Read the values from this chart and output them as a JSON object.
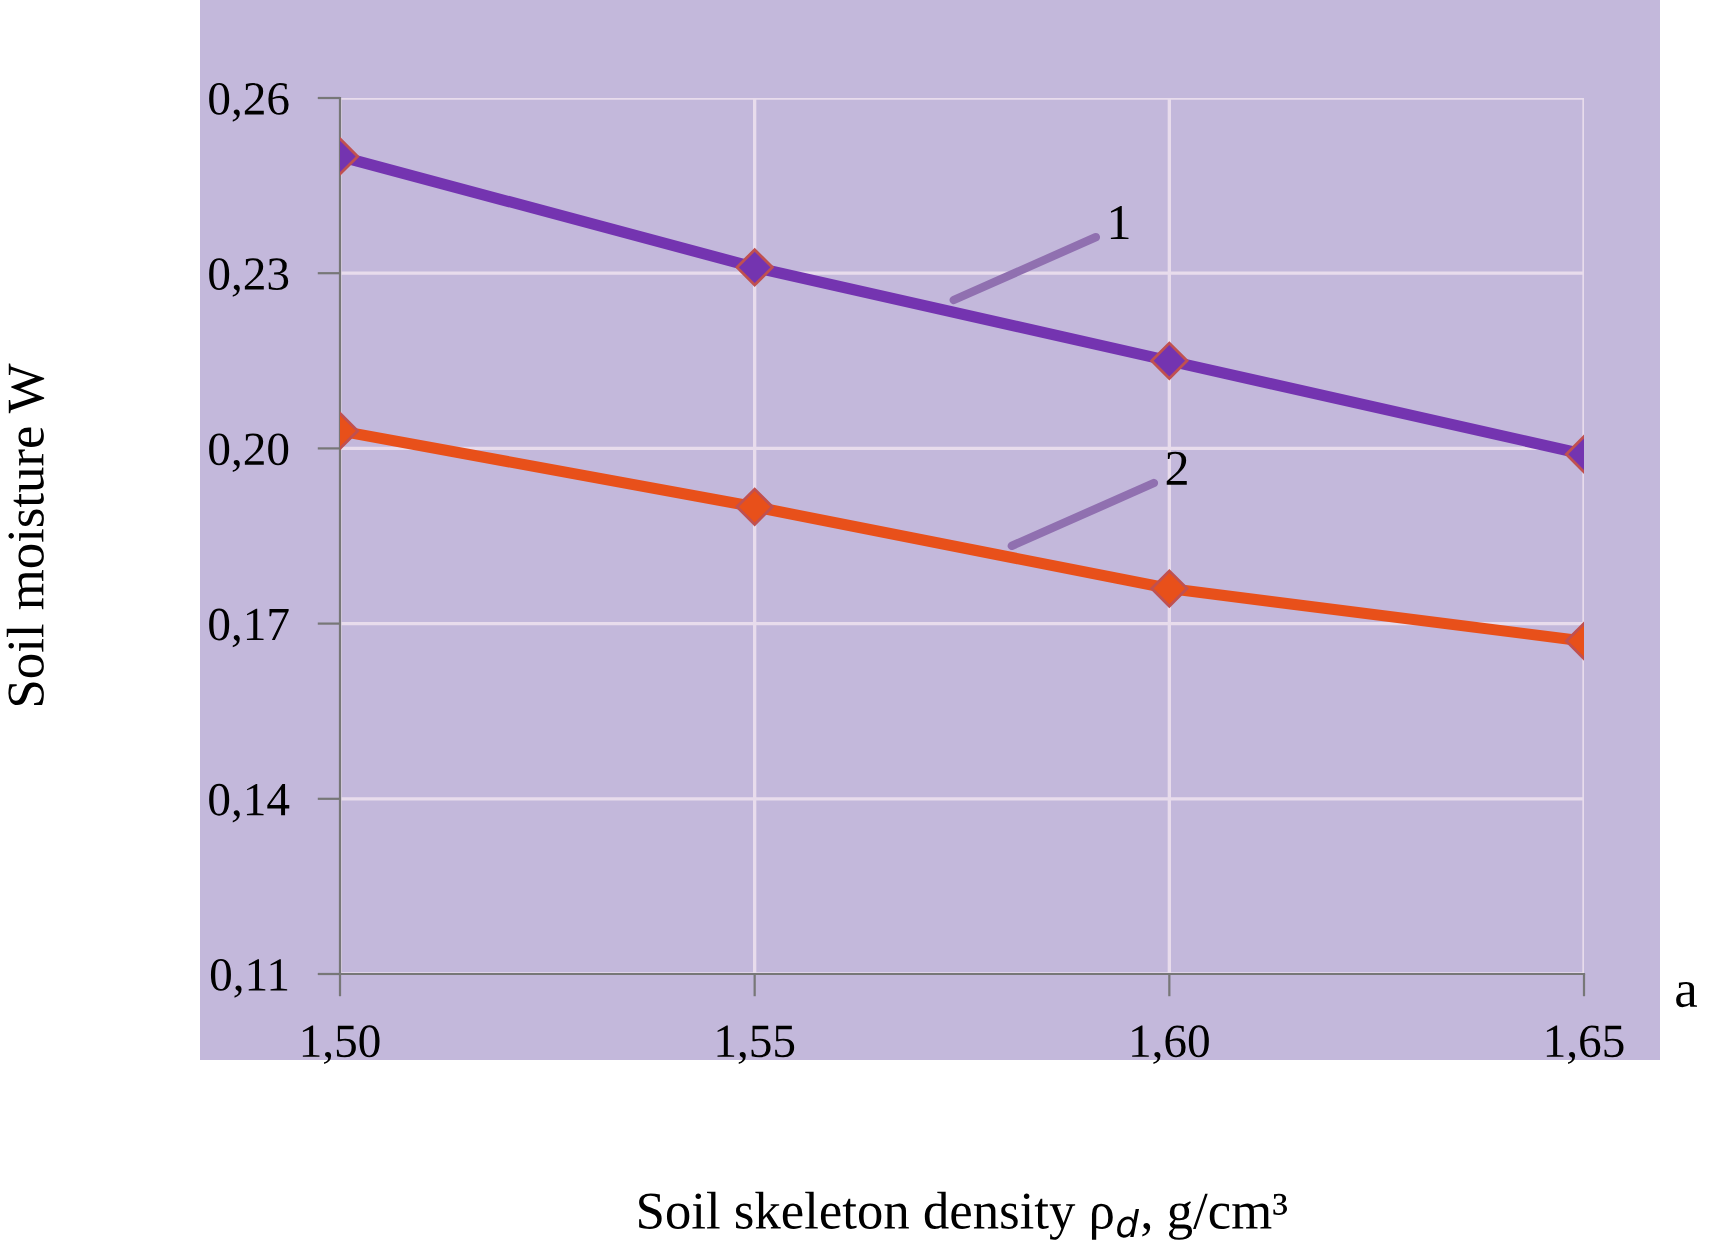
{
  "chart_data": {
    "type": "line",
    "xlabel": "Soil skeleton density ρ$_{d}$, g/cm³",
    "ylabel": "Soil moisture W",
    "x": [
      1.5,
      1.55,
      1.6,
      1.65
    ],
    "series": [
      {
        "color": "#7434b0",
        "values": [
          0.25,
          0.231,
          0.215,
          0.199
        ]
      },
      {
        "color": "#e8501a",
        "values": [
          0.203,
          0.19,
          0.176,
          0.167
        ]
      }
    ],
    "xlim": [
      1.5,
      1.65
    ],
    "ylim": [
      0.11,
      0.26
    ],
    "xticks": [
      {
        "value": 1.5,
        "label": "1,50"
      },
      {
        "value": 1.55,
        "label": "1,55"
      },
      {
        "value": 1.6,
        "label": "1,60"
      },
      {
        "value": 1.65,
        "label": "1,65"
      }
    ],
    "yticks": [
      {
        "value": 0.11,
        "label": "0,11"
      },
      {
        "value": 0.14,
        "label": "0,14"
      },
      {
        "value": 0.17,
        "label": "0,17"
      },
      {
        "value": 0.2,
        "label": "0,20"
      },
      {
        "value": 0.23,
        "label": "0,23"
      },
      {
        "value": 0.26,
        "label": "0,26"
      }
    ],
    "annotations": [
      {
        "text": "1",
        "x": 1.574,
        "y": 0.2254
      },
      {
        "text": "2",
        "x": 1.581,
        "y": 0.1833
      },
      "a"
    ],
    "grid": true,
    "marker": "diamond",
    "line_style": "solid",
    "legend": false
  }
}
